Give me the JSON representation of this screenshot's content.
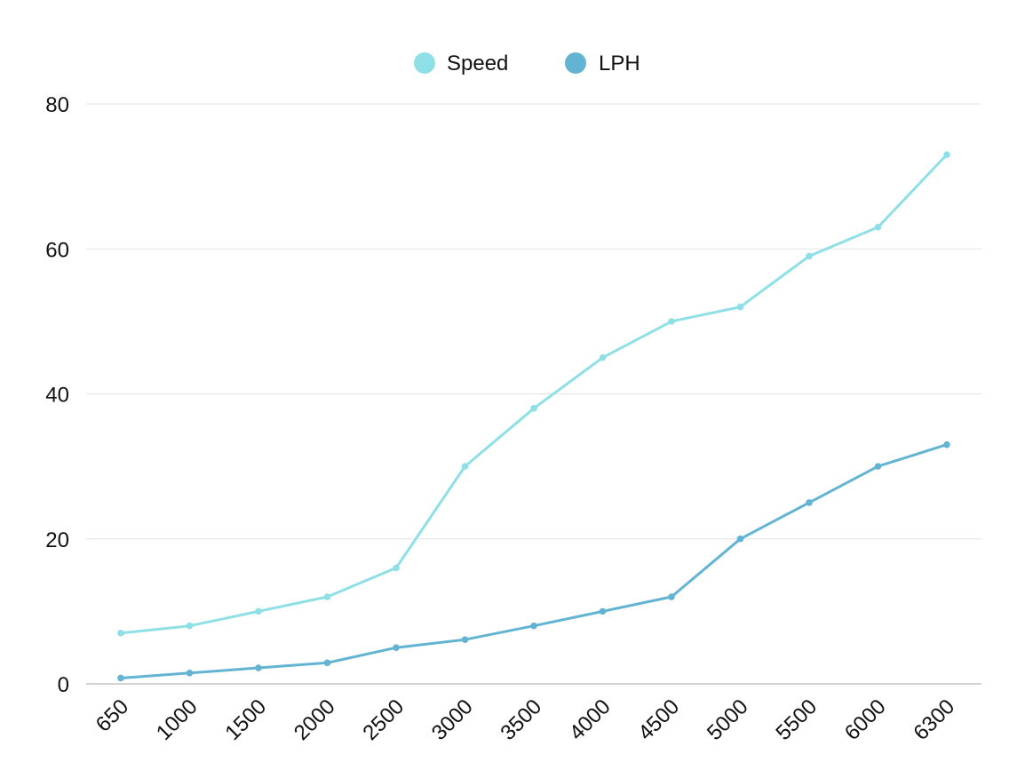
{
  "chart_data": {
    "type": "line",
    "title": "",
    "xlabel": "",
    "ylabel": "",
    "categories": [
      "650",
      "1000",
      "1500",
      "2000",
      "2500",
      "3000",
      "3500",
      "4000",
      "4500",
      "5000",
      "5500",
      "6000",
      "6300"
    ],
    "ylim": [
      0,
      80
    ],
    "yticks": [
      "0",
      "20",
      "40",
      "60",
      "80"
    ],
    "grid": true,
    "legend_position": "top-center",
    "series": [
      {
        "name": "Speed",
        "color": "#8fe0e6",
        "values": [
          7,
          8,
          10,
          12,
          16,
          30,
          38,
          45,
          50,
          52,
          59,
          63,
          73
        ]
      },
      {
        "name": "LPH",
        "color": "#62b4d2",
        "values": [
          0.8,
          1.5,
          2.2,
          2.9,
          5,
          6.1,
          8,
          10,
          12,
          20,
          25,
          30,
          33
        ]
      }
    ]
  }
}
